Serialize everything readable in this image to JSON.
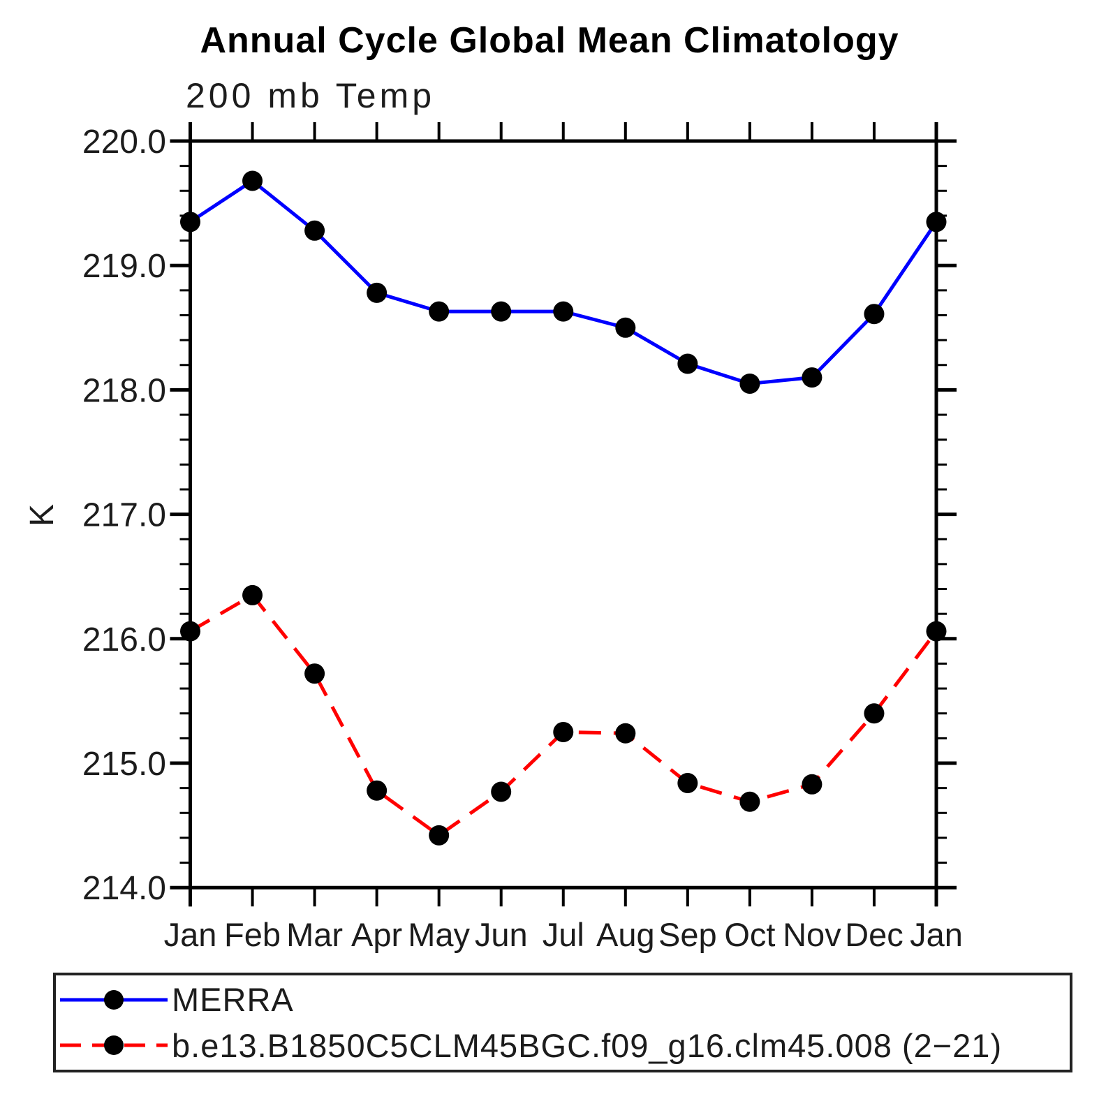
{
  "header": {
    "title": "Annual Cycle Global Mean Climatology",
    "subtitle": "200 mb Temp"
  },
  "chart_data": {
    "type": "line",
    "title": "Annual Cycle Global Mean Climatology",
    "subtitle": "200 mb Temp",
    "xlabel": "",
    "ylabel": "K",
    "categories": [
      "Jan",
      "Feb",
      "Mar",
      "Apr",
      "May",
      "Jun",
      "Jul",
      "Aug",
      "Sep",
      "Oct",
      "Nov",
      "Dec",
      "Jan"
    ],
    "y_ticks": [
      "220.0",
      "219.0",
      "218.0",
      "217.0",
      "216.0",
      "215.0",
      "214.0"
    ],
    "ylim": [
      214.0,
      220.0
    ],
    "y_minor_step": 0.2,
    "grid": false,
    "legend_position": "bottom",
    "marker_color": "#000000",
    "series": [
      {
        "name": "MERRA",
        "color": "#0000FF",
        "style": "solid",
        "marker": "circle",
        "values": [
          219.35,
          219.68,
          219.28,
          218.78,
          218.63,
          218.63,
          218.63,
          218.5,
          218.21,
          218.05,
          218.1,
          218.61,
          219.35
        ]
      },
      {
        "name": "b.e13.B1850C5CLM45BGC.f09_g16.clm45.008 (2−21)",
        "color": "#FF0000",
        "style": "dashed",
        "marker": "circle",
        "values": [
          216.06,
          216.35,
          215.72,
          214.78,
          214.42,
          214.77,
          215.25,
          215.24,
          214.84,
          214.69,
          214.83,
          215.4,
          216.06
        ]
      }
    ]
  }
}
